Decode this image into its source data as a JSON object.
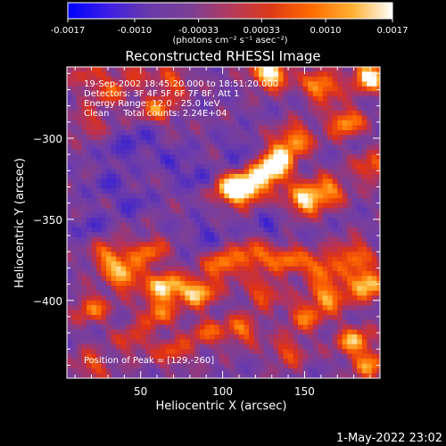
{
  "colorbar": {
    "ticks": [
      "-0.0017",
      "-0.0010",
      "-0.00033",
      "0.00033",
      "0.0010",
      "0.0017"
    ],
    "tick_values": [
      -0.0017,
      -0.001,
      -0.00033,
      0.00033,
      0.001,
      0.0017
    ],
    "unit_label": "(photons cm⁻² s⁻¹ asec⁻²)",
    "colors": [
      "#0000ff",
      "#3c1ee6",
      "#6a3aa8",
      "#7a3f96",
      "#b23a5e",
      "#dc3a18",
      "#ff6a00",
      "#ffb030",
      "#ffffff"
    ]
  },
  "chart_data": {
    "type": "heatmap",
    "title": "Reconstructed RHESSI Image",
    "xlabel": "Heliocentric X (arcsec)",
    "ylabel": "Heliocentric Y (arcsec)",
    "xlim": [
      5,
      196
    ],
    "ylim": [
      -448,
      -256
    ],
    "x_ticks": [
      50,
      100,
      150
    ],
    "y_ticks": [
      -300,
      -350,
      -400
    ],
    "x_tick_labels": [
      "50",
      "100",
      "150"
    ],
    "y_tick_labels": [
      "−300",
      "−350",
      "−400"
    ],
    "peak_x": 129,
    "peak_y": -260,
    "info_lines": [
      "19-Sep-2002 18:45:20.000 to 18:51:20.000",
      "Detectors: 3F 4F 5F 6F 7F 8F, Att 1",
      "Energy Range: 12.0 - 25.0 keV",
      "Clean     Total counts: 2.24E+04"
    ],
    "peak_label": "Position of Peak = [129,-260]"
  },
  "footer": {
    "timestamp": "1-May-2022 23:02"
  }
}
